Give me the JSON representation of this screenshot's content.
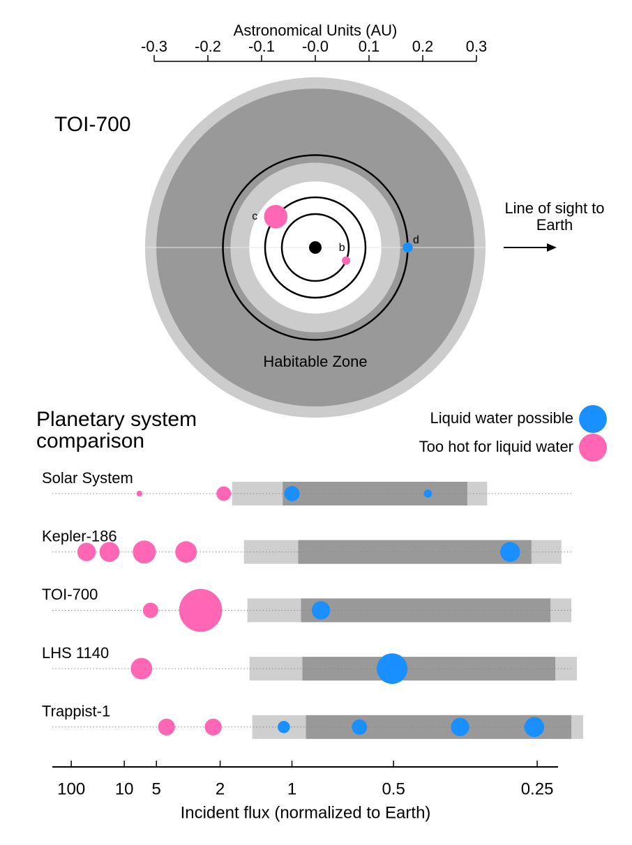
{
  "chart_data": [
    {
      "type": "orbit",
      "title": "TOI-700",
      "xlabel": "Astronomical Units (AU)",
      "xlim": [
        -0.3,
        0.3
      ],
      "xticks": [
        -0.3,
        -0.2,
        -0.1,
        {
          "value": 0,
          "label": "-0.0"
        },
        0.1,
        0.2,
        0.3
      ],
      "habitable_zone": {
        "label": "Habitable Zone",
        "optimistic": [
          0.123,
          0.317
        ],
        "conservative": [
          0.158,
          0.296
        ],
        "optimistic_color": "#cccccc",
        "conservative_color": "#999999"
      },
      "planets": [
        {
          "name": "b",
          "a": 0.0623,
          "phase_deg": -23,
          "radius": 1.0,
          "color": "#ff66b3"
        },
        {
          "name": "c",
          "a": 0.0935,
          "phase_deg": 142,
          "radius": 2.8,
          "color": "#ff66b3"
        },
        {
          "name": "d",
          "a": 0.172,
          "phase_deg": 0,
          "radius": 1.2,
          "color": "#1a8fff"
        }
      ],
      "annotation": "Line of sight to Earth"
    },
    {
      "type": "comparison",
      "title": "Planetary system comparison",
      "xlabel": "Incident flux (normalized to Earth)",
      "xscale": "inverse-sqrt",
      "xlim": [
        1940,
        0.23
      ],
      "xticks": [
        100,
        10,
        5,
        2,
        1,
        0.5,
        0.25
      ],
      "legend_position": "upper right",
      "legend": [
        {
          "name": "Liquid water possible",
          "color": "#1a8fff"
        },
        {
          "name": "Too hot for liquid water",
          "color": "#ff66b3"
        }
      ],
      "optimistic_color": "#cfcfcf",
      "conservative_color": "#999999",
      "systems": [
        {
          "name": "Solar System",
          "optimistic": [
            1.75,
            0.31
          ],
          "conservative": [
            1.08,
            0.34
          ],
          "planets": [
            {
              "flux": 7.0,
              "radius": 0.38,
              "group": 1
            },
            {
              "flux": 1.92,
              "radius": 0.95,
              "group": 1
            },
            {
              "flux": 1,
              "radius": 1,
              "group": 0
            },
            {
              "flux": 0.414,
              "radius": 0.53,
              "group": 0
            }
          ]
        },
        {
          "name": "Kepler-186",
          "optimistic": [
            1.547,
            0.227
          ],
          "conservative": [
            0.951,
            0.256
          ],
          "planets": [
            {
              "flux": 38,
              "radius": 1.2,
              "group": 1
            },
            {
              "flux": 15.3,
              "radius": 1.3,
              "group": 1
            },
            {
              "flux": 6.32,
              "radius": 1.5,
              "group": 1
            },
            {
              "flux": 3.1,
              "radius": 1.4,
              "group": 1
            },
            {
              "flux": 0.28,
              "radius": 1.3,
              "group": 0
            }
          ]
        },
        {
          "name": "TOI-700",
          "optimistic": [
            1.494,
            0.2185
          ],
          "conservative": [
            0.93,
            0.237
          ],
          "planets": [
            {
              "flux": 5.58,
              "radius": 1.0,
              "group": 1
            },
            {
              "flux": 2.54,
              "radius": 2.8,
              "group": 1
            },
            {
              "flux": 0.8,
              "radius": 1.2,
              "group": 0
            }
          ]
        },
        {
          "name": "LHS 1140",
          "optimistic": [
            1.463,
            0.214
          ],
          "conservative": [
            0.92,
            0.2325
          ],
          "planets": [
            {
              "flux": 6.7,
              "radius": 1.4,
              "group": 1
            },
            {
              "flux": 0.504,
              "radius": 2.0,
              "group": 0
            }
          ]
        },
        {
          "name": "Trappist-1",
          "optimistic": [
            1.424,
            0.209
          ],
          "conservative": [
            0.895,
            0.2185
          ],
          "planets": [
            {
              "flux": 4.19,
              "radius": 1.1,
              "group": 1
            },
            {
              "flux": 2.17,
              "radius": 1.1,
              "group": 1
            },
            {
              "flux": 1.07,
              "radius": 0.8,
              "group": 0
            },
            {
              "flux": 0.615,
              "radius": 1.0,
              "group": 0
            },
            {
              "flux": 0.352,
              "radius": 1.2,
              "group": 0
            },
            {
              "flux": 0.253,
              "radius": 1.3,
              "group": 0
            }
          ]
        }
      ]
    }
  ]
}
